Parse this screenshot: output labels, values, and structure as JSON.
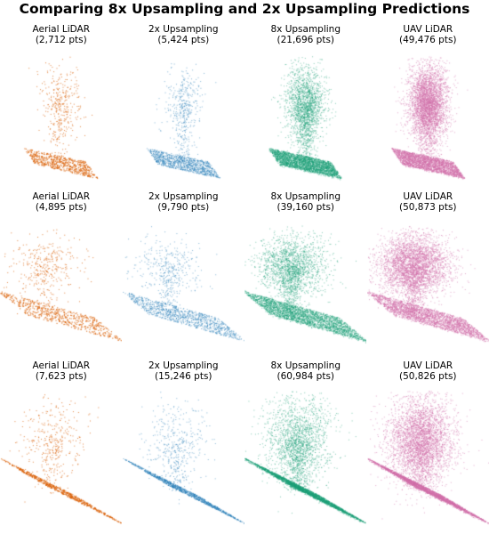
{
  "title": "Comparing 8x Upsampling and 2x Upsampling Predictions",
  "colors": {
    "aerial": "#d95f02",
    "upsample2x": "#1f78b4",
    "upsample8x": "#1b9e77",
    "uav": "#d16ea9"
  },
  "rows": [
    {
      "panels": [
        {
          "label": "Aerial LiDAR",
          "count": "(2,712 pts)",
          "color_key": "aerial"
        },
        {
          "label": "2x Upsampling",
          "count": "(5,424 pts)",
          "color_key": "upsample2x"
        },
        {
          "label": "8x Upsampling",
          "count": "(21,696 pts)",
          "color_key": "upsample8x"
        },
        {
          "label": "UAV LiDAR",
          "count": "(49,476 pts)",
          "color_key": "uav"
        }
      ]
    },
    {
      "panels": [
        {
          "label": "Aerial LiDAR",
          "count": "(4,895 pts)",
          "color_key": "aerial"
        },
        {
          "label": "2x Upsampling",
          "count": "(9,790 pts)",
          "color_key": "upsample2x"
        },
        {
          "label": "8x Upsampling",
          "count": "(39,160 pts)",
          "color_key": "upsample8x"
        },
        {
          "label": "UAV LiDAR",
          "count": "(50,873 pts)",
          "color_key": "uav"
        }
      ]
    },
    {
      "panels": [
        {
          "label": "Aerial LiDAR",
          "count": "(7,623 pts)",
          "color_key": "aerial"
        },
        {
          "label": "2x Upsampling",
          "count": "(15,246 pts)",
          "color_key": "upsample2x"
        },
        {
          "label": "8x Upsampling",
          "count": "(60,984 pts)",
          "color_key": "upsample8x"
        },
        {
          "label": "UAV LiDAR",
          "count": "(50,826 pts)",
          "color_key": "uav"
        }
      ]
    }
  ]
}
